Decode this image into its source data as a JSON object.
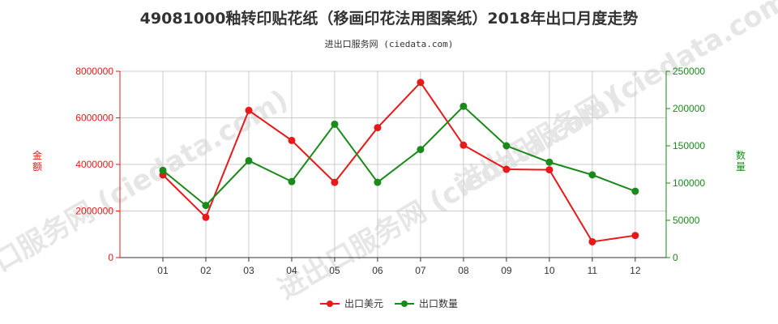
{
  "title": "49081000釉转印贴花纸（移画印花法用图案纸）2018年出口月度走势",
  "subtitle": "进出口服务网 (ciedata.com)",
  "watermark": "进出口服务网 (ciedata.com)",
  "colors": {
    "left_series": "#e8191a",
    "right_series": "#1a8a1a",
    "grid": "#cccccc"
  },
  "chart_data": {
    "type": "line",
    "categories": [
      "01",
      "02",
      "03",
      "04",
      "05",
      "06",
      "07",
      "08",
      "09",
      "10",
      "11",
      "12"
    ],
    "series": [
      {
        "name": "出口美元",
        "axis": "left",
        "color": "#e8191a",
        "values": [
          3550000,
          1730000,
          6320000,
          5030000,
          3230000,
          5580000,
          7520000,
          4830000,
          3790000,
          3770000,
          680000,
          950000
        ]
      },
      {
        "name": "出口数量",
        "axis": "right",
        "color": "#1a8a1a",
        "values": [
          117000,
          70000,
          130000,
          102000,
          179000,
          101000,
          145000,
          203000,
          150000,
          128000,
          111000,
          89000
        ]
      }
    ],
    "left_axis": {
      "label": "金额",
      "ylim": [
        0,
        8000000
      ],
      "ticks": [
        "0",
        "2000000",
        "4000000",
        "6000000",
        "8000000"
      ],
      "tick_values": [
        0,
        2000000,
        4000000,
        6000000,
        8000000
      ]
    },
    "right_axis": {
      "label": "数量",
      "ylim": [
        0,
        250000
      ],
      "ticks": [
        "0",
        "50000",
        "100000",
        "150000",
        "200000",
        "250000"
      ],
      "tick_values": [
        0,
        50000,
        100000,
        150000,
        200000,
        250000
      ]
    },
    "grid": true,
    "legend_position": "bottom-center"
  }
}
